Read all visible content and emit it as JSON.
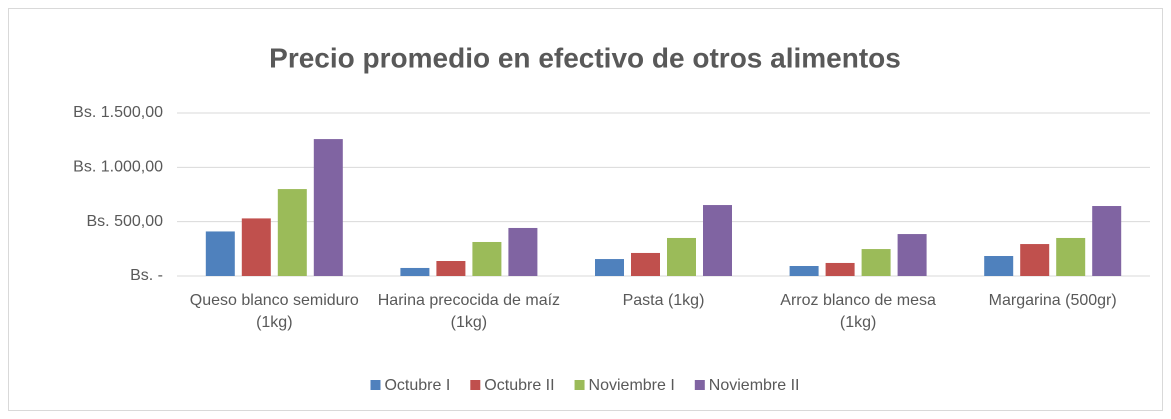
{
  "chart_data": {
    "type": "bar",
    "title": "Precio promedio en efectivo de otros alimentos",
    "categories": [
      "Queso blanco semiduro (1kg)",
      "Harina precocida de maíz (1kg)",
      "Pasta (1kg)",
      "Arroz blanco de mesa (1kg)",
      "Margarina (500gr)"
    ],
    "series": [
      {
        "name": "Octubre I",
        "color": "#4f81bd",
        "values": [
          410,
          74,
          156,
          92,
          184
        ]
      },
      {
        "name": "Octubre II",
        "color": "#c0504d",
        "values": [
          530,
          138,
          212,
          120,
          294
        ]
      },
      {
        "name": "Noviembre I",
        "color": "#9bbb59",
        "values": [
          800,
          313,
          350,
          248,
          350
        ]
      },
      {
        "name": "Noviembre II",
        "color": "#8064a2",
        "values": [
          1260,
          442,
          653,
          386,
          644
        ]
      }
    ],
    "ylim": [
      0,
      1500
    ],
    "yticks": [
      {
        "value": 0,
        "label": "Bs. -"
      },
      {
        "value": 500,
        "label": "Bs. 500,00"
      },
      {
        "value": 1000,
        "label": "Bs. 1.000,00"
      },
      {
        "value": 1500,
        "label": "Bs. 1.500,00"
      }
    ],
    "grid": true,
    "legend": "bottom"
  }
}
